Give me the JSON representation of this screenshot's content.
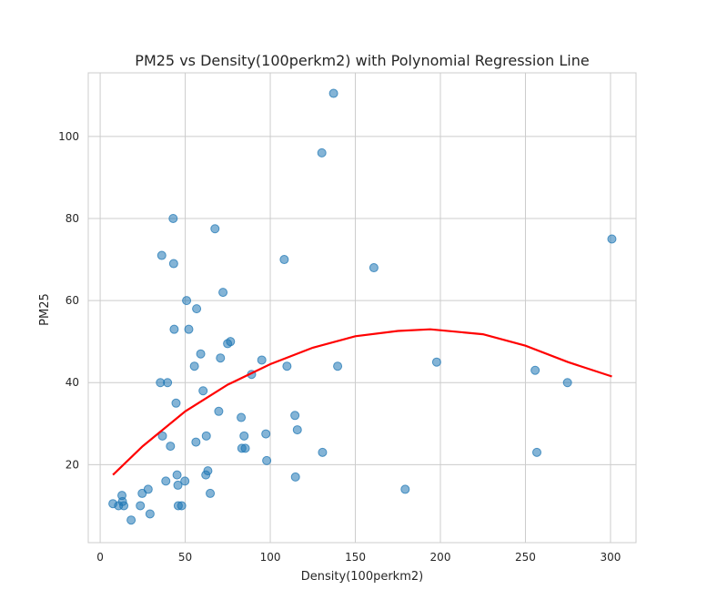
{
  "chart_data": {
    "type": "scatter",
    "title": "PM25 vs Density(100perkm2) with Polynomial Regression Line",
    "xlabel": "Density(100perkm2)",
    "ylabel": "PM25",
    "xlim": [
      -7,
      315
    ],
    "ylim": [
      1,
      115.5
    ],
    "xticks": [
      0,
      50,
      100,
      150,
      200,
      250,
      300
    ],
    "yticks": [
      20,
      40,
      60,
      80,
      100
    ],
    "grid": true,
    "colors": {
      "points": "#1f77b4",
      "line": "#ff0000",
      "grid": "#cccccc",
      "axis": "#cccccc"
    },
    "series": [
      {
        "kind": "scatter",
        "x": [
          7.5,
          10.8,
          12.8,
          13.1,
          13.9,
          18.2,
          23.6,
          24.7,
          28.2,
          29.3,
          35.4,
          36.2,
          36.6,
          38.6,
          39.6,
          41.3,
          42.9,
          43.2,
          43.5,
          44.6,
          45.2,
          45.7,
          45.9,
          47.9,
          49.8,
          50.8,
          52.1,
          55.4,
          56.3,
          56.7,
          59.1,
          60.5,
          62.1,
          62.4,
          63.3,
          64.7,
          67.5,
          69.7,
          70.7,
          72.2,
          74.9,
          76.6,
          82.9,
          83.3,
          84.6,
          85.3,
          89.0,
          95.0,
          97.4,
          97.9,
          108.2,
          109.8,
          114.5,
          114.8,
          115.9,
          130.3,
          130.7,
          137.2,
          139.6,
          160.9,
          179.3,
          197.8,
          255.7,
          256.7,
          274.7,
          300.8
        ],
        "y": [
          10.5,
          10.0,
          12.5,
          11.0,
          10.0,
          6.5,
          10.0,
          13.0,
          14.0,
          8.0,
          40.0,
          71.0,
          27.0,
          16.0,
          40.0,
          24.5,
          80.0,
          69.0,
          53.0,
          35.0,
          17.5,
          15.0,
          10.0,
          10.0,
          16.0,
          60.0,
          53.0,
          44.0,
          25.5,
          58.0,
          47.0,
          38.0,
          17.5,
          27.0,
          18.5,
          13.0,
          77.5,
          33.0,
          46.0,
          62.0,
          49.5,
          50.0,
          31.5,
          24.0,
          27.0,
          24.0,
          42.0,
          45.5,
          27.5,
          21.0,
          70.0,
          44.0,
          32.0,
          17.0,
          28.5,
          96.0,
          23.0,
          110.5,
          44.0,
          68.0,
          14.0,
          45.0,
          43.0,
          23.0,
          40.0,
          75.0
        ]
      },
      {
        "kind": "line",
        "x": [
          7.5,
          25,
          50,
          75,
          100,
          125,
          150,
          175,
          194,
          225,
          250,
          275,
          300.8
        ],
        "y": [
          17.5,
          24.5,
          33.0,
          39.5,
          44.5,
          48.5,
          51.3,
          52.6,
          53.0,
          51.8,
          49.0,
          45.0,
          41.5
        ]
      }
    ]
  }
}
